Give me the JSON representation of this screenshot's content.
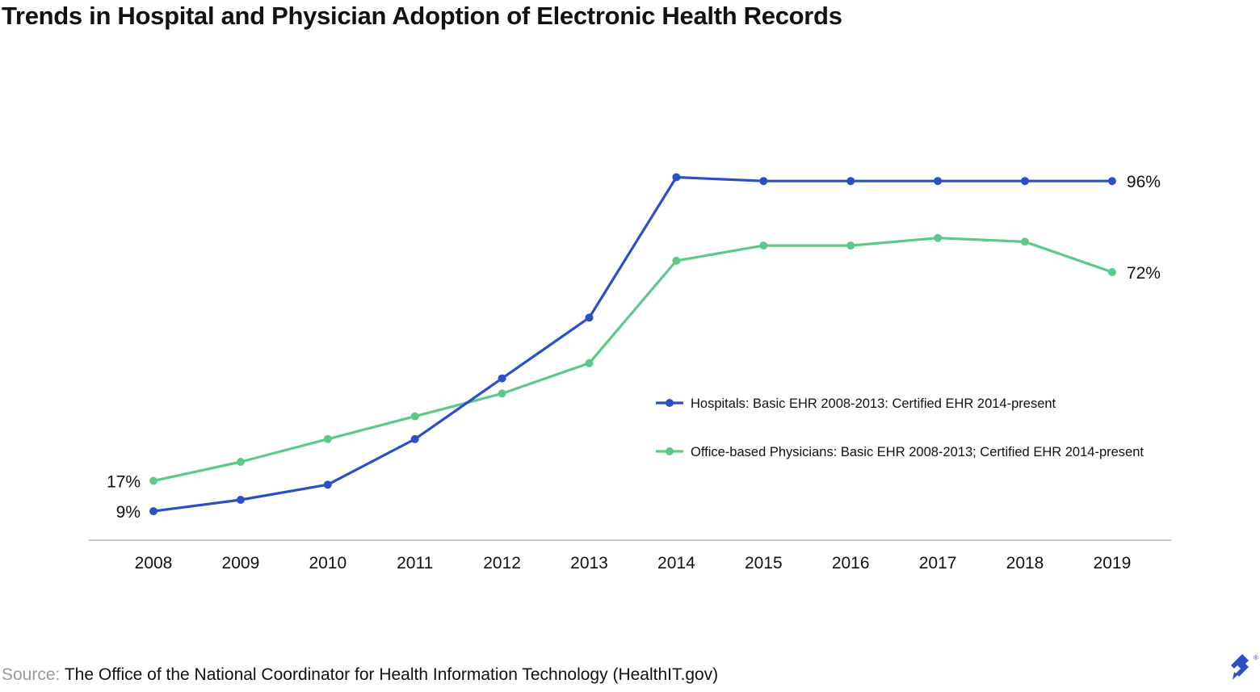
{
  "title": "Trends in Hospital and Physician Adoption of Electronic Health Records",
  "source": {
    "label": "Source:",
    "text": "The Office of the National Coordinator for Health Information Technology (HealthIT.gov)"
  },
  "colors": {
    "hospitals": "#2b4fc7",
    "physicians": "#5cc98b",
    "axis": "#cccccc",
    "text": "#111111",
    "source_label": "#9a9a9a",
    "logo": "#2b4fc7"
  },
  "logo": {
    "icon": "toptal-logo-icon",
    "mark": "®"
  },
  "chart_data": {
    "type": "line",
    "title": "Trends in Hospital and Physician Adoption of Electronic Health Records",
    "xlabel": "",
    "ylabel": "",
    "categories": [
      "2008",
      "2009",
      "2010",
      "2011",
      "2012",
      "2013",
      "2014",
      "2015",
      "2016",
      "2017",
      "2018",
      "2019"
    ],
    "ylim": [
      0,
      100
    ],
    "grid": false,
    "legend_position": "center-right",
    "series": [
      {
        "name": "Hospitals: Basic EHR 2008-2013: Certified EHR 2014-present",
        "color": "#2b4fc7",
        "values": [
          9,
          12,
          16,
          28,
          44,
          60,
          97,
          96,
          96,
          96,
          96,
          96
        ]
      },
      {
        "name": "Office-based Physicians: Basic EHR 2008-2013; Certified EHR 2014-present",
        "color": "#5cc98b",
        "values": [
          17,
          22,
          28,
          34,
          40,
          48,
          75,
          79,
          79,
          81,
          80,
          72
        ]
      }
    ],
    "annotations": [
      {
        "series": 1,
        "index": 0,
        "text": "17%"
      },
      {
        "series": 0,
        "index": 0,
        "text": "9%"
      },
      {
        "series": 0,
        "index": 11,
        "text": "96%"
      },
      {
        "series": 1,
        "index": 11,
        "text": "72%"
      }
    ]
  }
}
